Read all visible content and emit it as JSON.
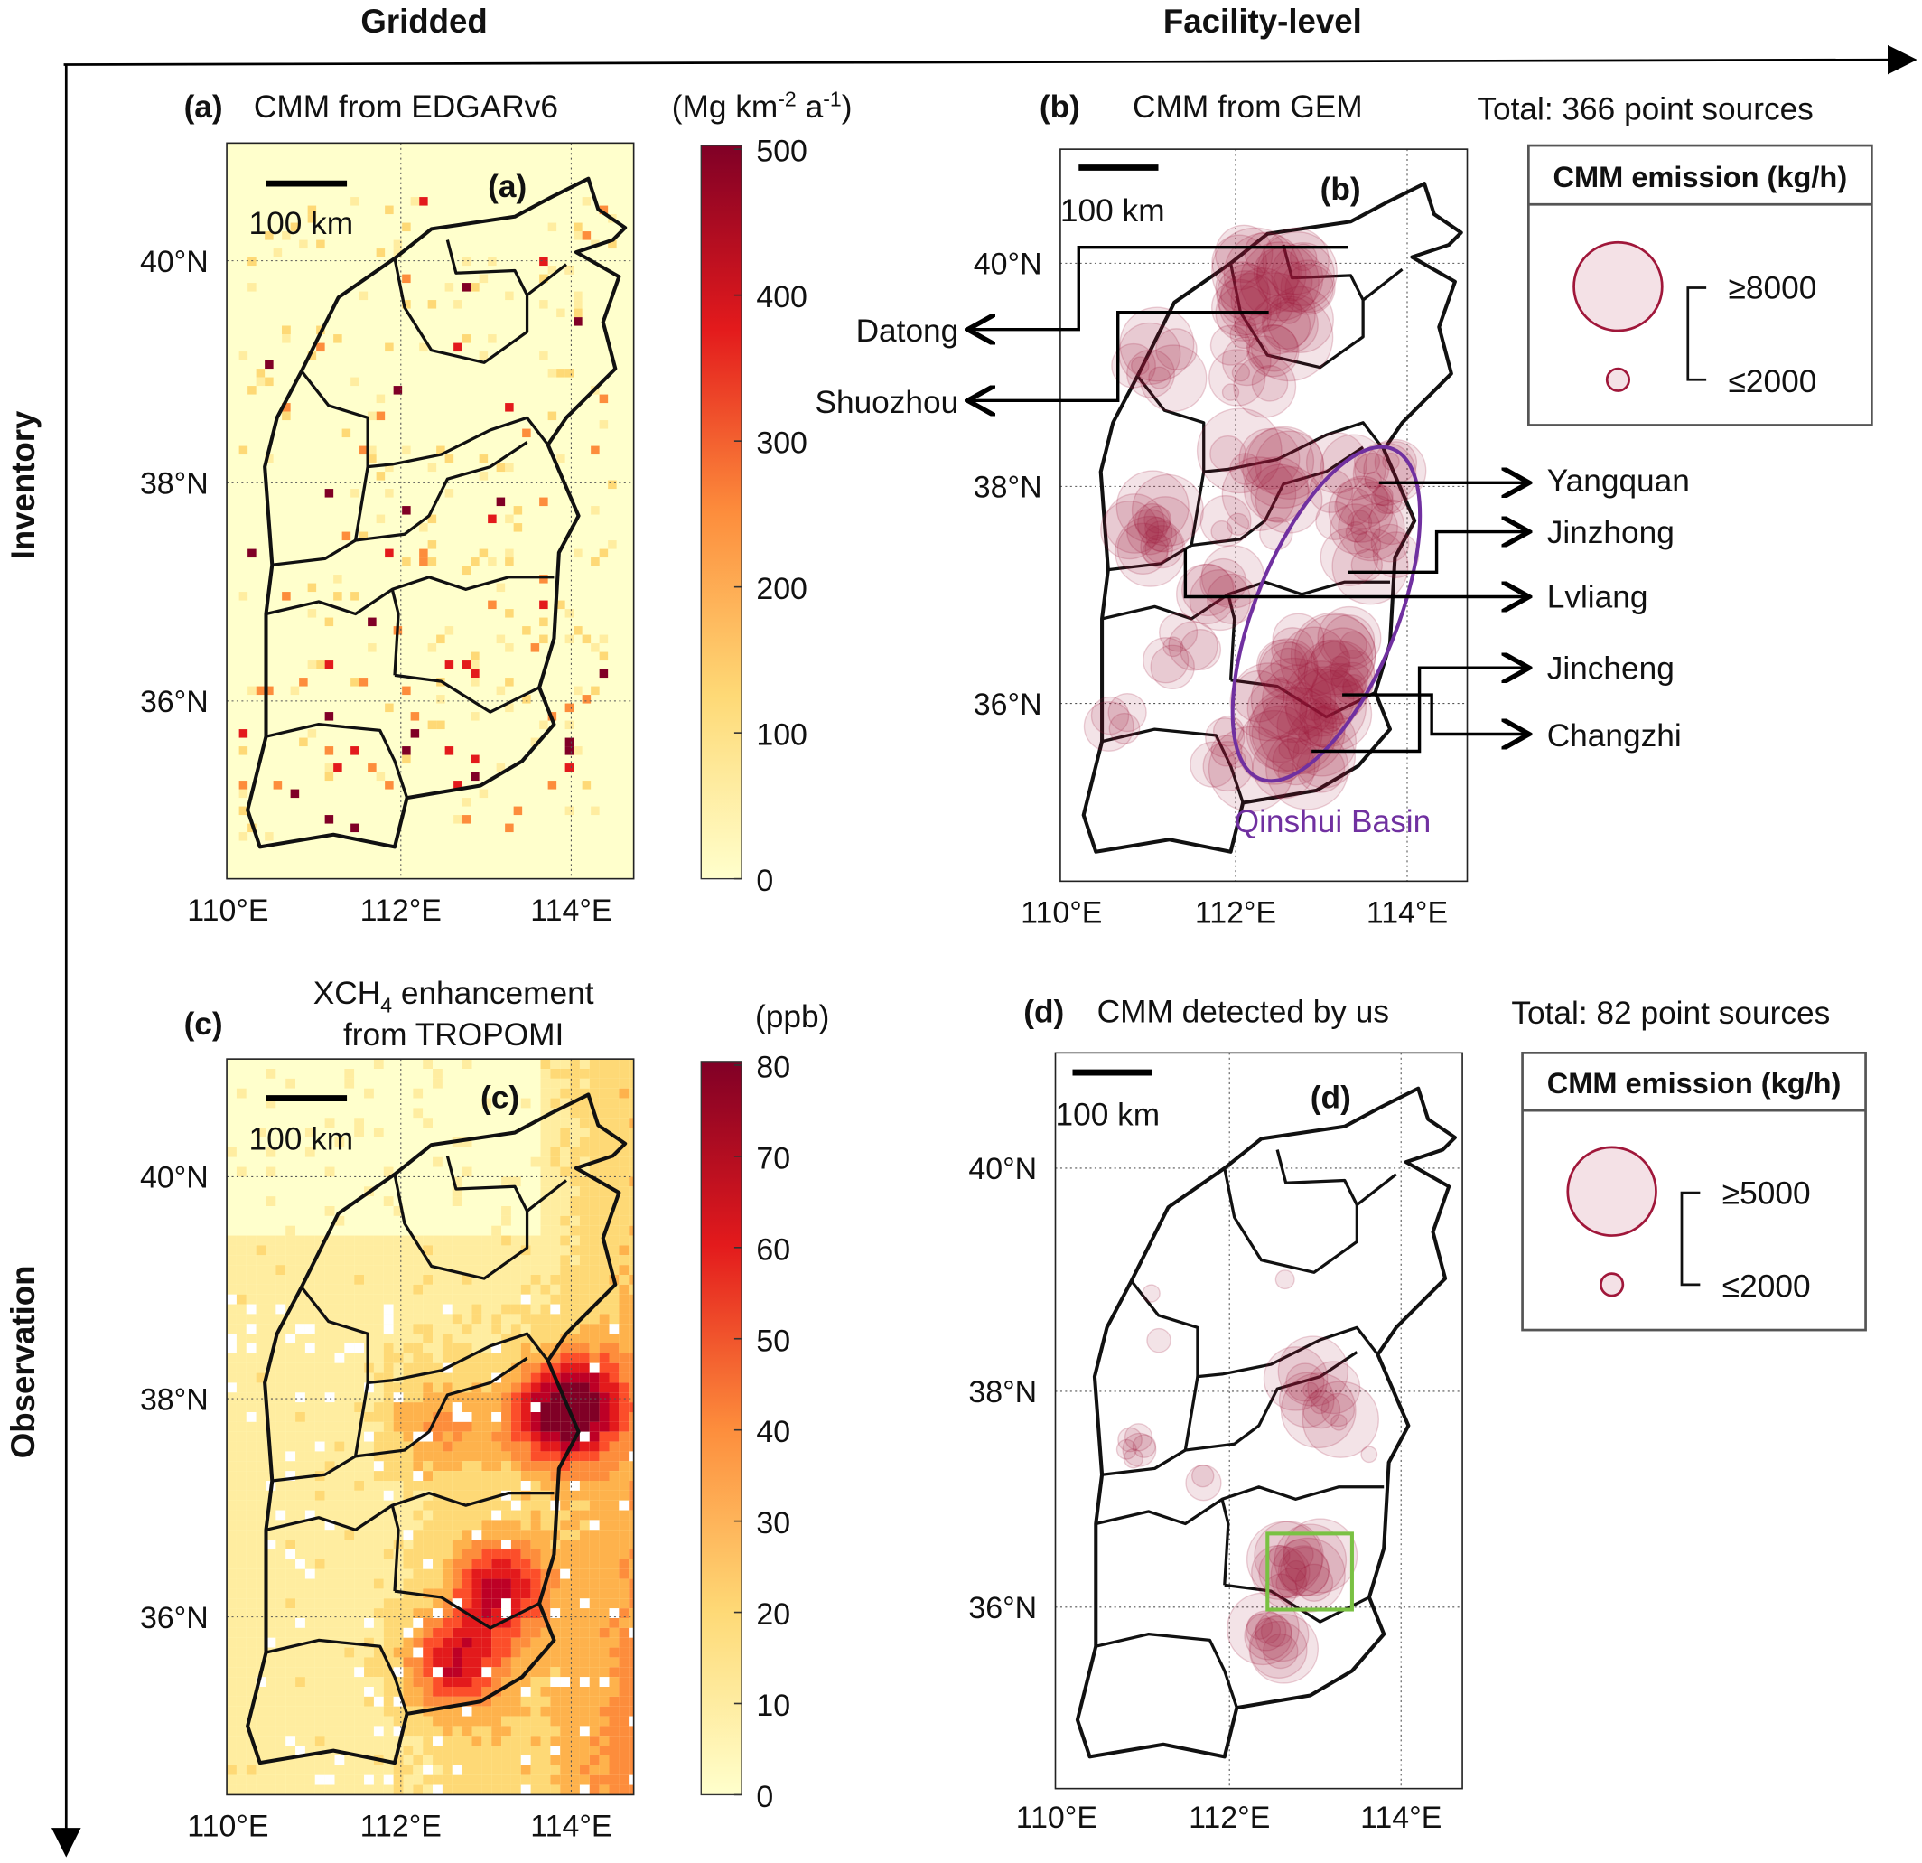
{
  "header": {
    "col1": "Gridded",
    "col2": "Facility-level",
    "row1": "Inventory",
    "row2": "Observation"
  },
  "panels": {
    "a": {
      "letter": "(a)",
      "title": "CMM from EDGARv6",
      "inset": "(a)",
      "scale": "100 km",
      "units": "(Mg km",
      "units_sup1": "-2",
      "units_mid": " a",
      "units_sup2": "-1",
      "units_end": ")",
      "colorbar_ticks": [
        "500",
        "400",
        "300",
        "200",
        "100",
        "0"
      ],
      "colorbar_range": [
        0,
        500
      ]
    },
    "b": {
      "letter": "(b)",
      "title": "CMM from GEM",
      "inset": "(b)",
      "scale": "100 km",
      "total": "Total: 366 point sources",
      "legend_title": "CMM emission (kg/h)",
      "legend_high": "≥8000",
      "legend_low": "≤2000",
      "cities": [
        "Datong",
        "Shuozhou",
        "Yangquan",
        "Jinzhong",
        "Lvliang",
        "Jincheng",
        "Changzhi"
      ],
      "basin": "Qinshui Basin",
      "basin_color": "#7030a0"
    },
    "c": {
      "letter": "(c)",
      "title_1": "XCH",
      "title_sub": "4",
      "title_2": " enhancement",
      "title_3": "from TROPOMI",
      "inset": "(c)",
      "scale": "100 km",
      "units": "(ppb)",
      "colorbar_ticks": [
        "80",
        "70",
        "60",
        "50",
        "40",
        "30",
        "20",
        "10",
        "0"
      ],
      "colorbar_range": [
        0,
        80
      ]
    },
    "d": {
      "letter": "(d)",
      "title": "CMM detected by us",
      "inset": "(d)",
      "scale": "100 km",
      "total": "Total: 82 point sources",
      "legend_title": "CMM emission (kg/h)",
      "legend_high": "≥5000",
      "legend_low": "≤2000",
      "box_color": "#7ac143"
    }
  },
  "axes": {
    "lon_ticks": [
      "110°E",
      "112°E",
      "114°E"
    ],
    "lat_ticks": [
      "40°N",
      "38°N",
      "36°N"
    ]
  },
  "colors": {
    "bubble": "#a0173a",
    "colormap": [
      "#ffffcc",
      "#fed976",
      "#fd8d3c",
      "#e31a1c",
      "#800026"
    ]
  }
}
